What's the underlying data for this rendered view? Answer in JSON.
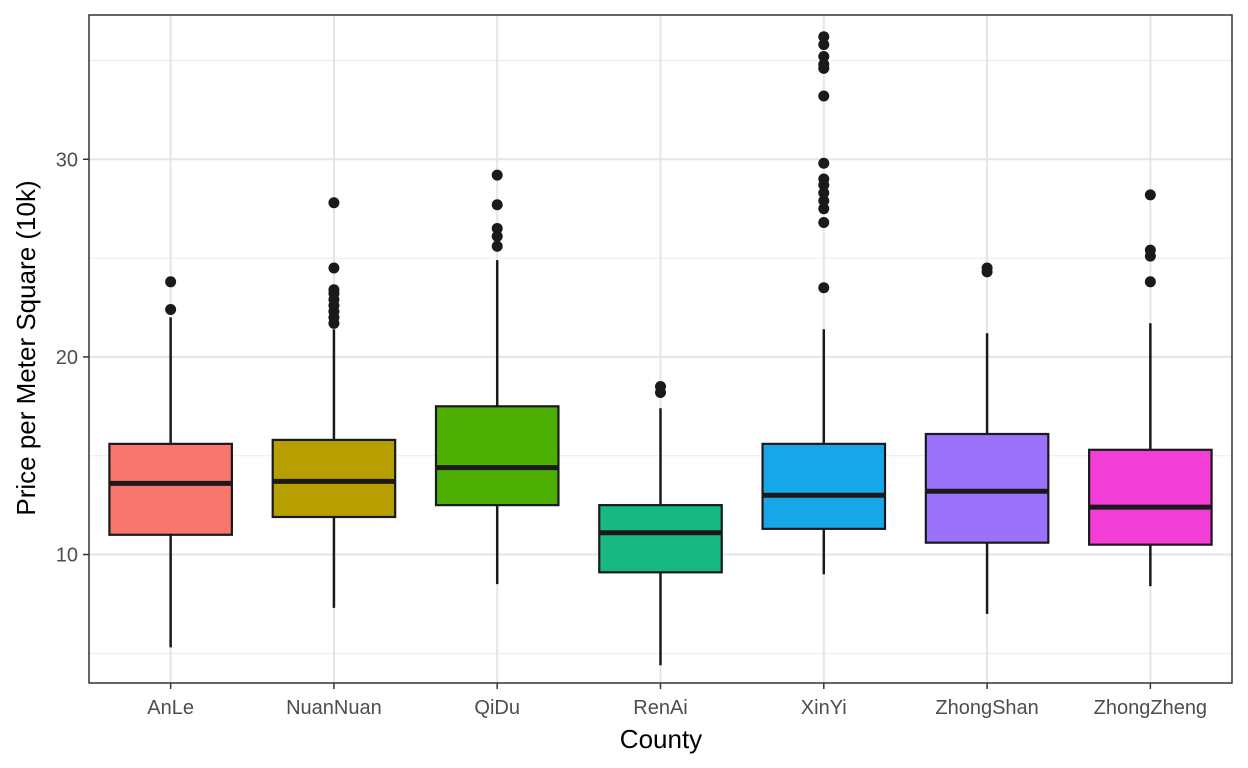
{
  "chart_data": {
    "type": "boxplot",
    "title": "",
    "xlabel": "County",
    "ylabel": "Price per Meter Square (10k)",
    "ylim": [
      3.5,
      37.3
    ],
    "y_ticks": [
      10,
      20,
      30
    ],
    "y_tick_labels": [
      "10",
      "20",
      "30"
    ],
    "grid": true,
    "legend": "none",
    "categories": [
      "AnLe",
      "NuanNuan",
      "QiDu",
      "RenAi",
      "XinYi",
      "ZhongShan",
      "ZhongZheng"
    ],
    "boxes": [
      {
        "category": "AnLe",
        "color": "#F8766D",
        "whisker_low": 5.3,
        "q1": 11.0,
        "median": 13.6,
        "q3": 15.6,
        "whisker_high": 22.0,
        "outliers": [
          22.4,
          23.8
        ]
      },
      {
        "category": "NuanNuan",
        "color": "#B79F00",
        "whisker_low": 7.3,
        "q1": 11.9,
        "median": 13.7,
        "q3": 15.8,
        "whisker_high": 21.4,
        "outliers": [
          21.7,
          22.0,
          22.3,
          22.6,
          22.9,
          23.2,
          23.4,
          24.5,
          27.8
        ]
      },
      {
        "category": "QiDu",
        "color": "#4DAE04",
        "whisker_low": 8.5,
        "q1": 12.5,
        "median": 14.4,
        "q3": 17.5,
        "whisker_high": 24.9,
        "outliers": [
          25.6,
          26.1,
          26.5,
          27.7,
          29.2
        ]
      },
      {
        "category": "RenAi",
        "color": "#17B882",
        "whisker_low": 4.4,
        "q1": 9.1,
        "median": 11.1,
        "q3": 12.5,
        "whisker_high": 17.4,
        "outliers": [
          18.2,
          18.5
        ]
      },
      {
        "category": "XinYi",
        "color": "#17A7E8",
        "whisker_low": 9.0,
        "q1": 11.3,
        "median": 13.0,
        "q3": 15.6,
        "whisker_high": 21.4,
        "outliers": [
          23.5,
          26.8,
          27.5,
          27.9,
          28.3,
          28.7,
          29.0,
          29.8,
          33.2,
          34.6,
          34.8,
          35.2,
          35.8,
          36.2
        ]
      },
      {
        "category": "ZhongShan",
        "color": "#9B72F9",
        "whisker_low": 7.0,
        "q1": 10.6,
        "median": 13.2,
        "q3": 16.1,
        "whisker_high": 21.2,
        "outliers": [
          24.3,
          24.5
        ]
      },
      {
        "category": "ZhongZheng",
        "color": "#F23ED6",
        "whisker_low": 8.4,
        "q1": 10.5,
        "median": 12.4,
        "q3": 15.3,
        "whisker_high": 21.7,
        "outliers": [
          23.8,
          25.1,
          25.4,
          28.2
        ]
      }
    ]
  }
}
